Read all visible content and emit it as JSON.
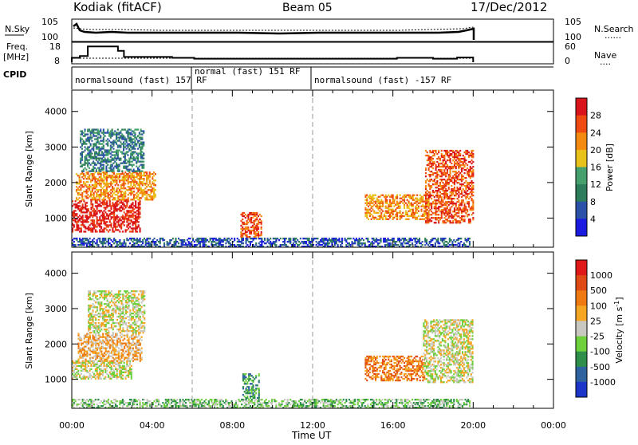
{
  "header": {
    "station": "Kodiak (fitACF)",
    "beam": "Beam 05",
    "date": "17/Dec/2012"
  },
  "top_panels": {
    "nsky": {
      "label": "N.Sky",
      "left_ticks": [
        "10^5",
        "10^0"
      ],
      "right_ticks": [
        "10^5",
        "10^0"
      ],
      "right_label": "N.Search",
      "right_marker": "......"
    },
    "freq": {
      "label_line1": "Freq.",
      "label_line2": "[MHz]",
      "left_ticks": [
        "18",
        "8"
      ],
      "right_ticks": [
        "60",
        "0"
      ],
      "right_label": "Nave",
      "right_marker": "...."
    },
    "cpid": {
      "label": "CPID",
      "segments": [
        {
          "text": "normalsound (fast) 157 RF",
          "start_hr": 0.0
        },
        {
          "text": "normal (fast) 151 RF",
          "start_hr": 6.0
        },
        {
          "text": "normalsound (fast) -157 RF",
          "start_hr": 12.0
        }
      ]
    },
    "freq_steps": [
      {
        "t0": 0.0,
        "t1": 0.4,
        "v": 10.5
      },
      {
        "t0": 0.4,
        "t1": 0.8,
        "v": 11.5
      },
      {
        "t0": 0.8,
        "t1": 2.3,
        "v": 17.0
      },
      {
        "t0": 2.3,
        "t1": 2.6,
        "v": 14.5
      },
      {
        "t0": 2.6,
        "t1": 5.0,
        "v": 11.0
      },
      {
        "t0": 5.0,
        "t1": 6.1,
        "v": 10.5
      },
      {
        "t0": 6.1,
        "t1": 12.0,
        "v": 10.0
      },
      {
        "t0": 12.0,
        "t1": 16.2,
        "v": 10.0
      },
      {
        "t0": 16.2,
        "t1": 18.0,
        "v": 10.5
      },
      {
        "t0": 18.0,
        "t1": 19.2,
        "v": 10.0
      },
      {
        "t0": 19.2,
        "t1": 20.0,
        "v": 10.7
      }
    ]
  },
  "chart_data": [
    {
      "type": "heatmap",
      "panel": "power",
      "ylabel": "Slant Range [km]",
      "xlabel": "Time UT",
      "x_ticks": [
        "00:00",
        "04:00",
        "08:00",
        "12:00",
        "16:00",
        "20:00",
        "00:00"
      ],
      "x_range_hr": [
        0,
        24
      ],
      "ylim": [
        180,
        4600
      ],
      "y_ticks": [
        "1000",
        "2000",
        "3000",
        "4000"
      ],
      "colorbar": {
        "label": "Power [dB]",
        "ticks": [
          "28",
          "24",
          "20",
          "16",
          "12",
          "8",
          "4"
        ],
        "colors": [
          "#1a1ae0",
          "#2b52a8",
          "#2e7d5a",
          "#46a06e",
          "#e8c21a",
          "#f58a10",
          "#ee4a12",
          "#d9141a"
        ]
      },
      "regions": [
        {
          "t0": 0.0,
          "t1": 3.4,
          "r0": 600,
          "r1": 1500,
          "level": 7
        },
        {
          "t0": 0.2,
          "t1": 4.2,
          "r0": 1500,
          "r1": 2300,
          "level": 5
        },
        {
          "t0": 0.4,
          "t1": 3.6,
          "r0": 2300,
          "r1": 3500,
          "level": 2
        },
        {
          "t0": 8.4,
          "t1": 9.4,
          "r0": 450,
          "r1": 1150,
          "level": 6
        },
        {
          "t0": 14.6,
          "t1": 17.8,
          "r0": 950,
          "r1": 1650,
          "level": 5
        },
        {
          "t0": 17.6,
          "t1": 20.0,
          "r0": 850,
          "r1": 2900,
          "level": 6
        },
        {
          "t0": 0.0,
          "t1": 19.8,
          "r0": 180,
          "r1": 420,
          "level": 1
        }
      ],
      "dashed_markers_hr": [
        6,
        12
      ]
    },
    {
      "type": "heatmap",
      "panel": "velocity",
      "ylabel": "Slant Range [km]",
      "xlabel": "Time UT",
      "x_ticks": [
        "00:00",
        "04:00",
        "08:00",
        "12:00",
        "16:00",
        "20:00",
        "00:00"
      ],
      "x_range_hr": [
        0,
        24
      ],
      "ylim": [
        180,
        4600
      ],
      "y_ticks": [
        "1000",
        "2000",
        "3000",
        "4000"
      ],
      "colorbar": {
        "label": "Velocity [m s^-1]",
        "ticks": [
          "1000",
          "500",
          "100",
          "25",
          "-25",
          "-100",
          "-500",
          "-1000"
        ],
        "colors": [
          "#1b36c8",
          "#2e63a0",
          "#2e8f4a",
          "#6ed03c",
          "#c8c8c0",
          "#f5a623",
          "#ef7a12",
          "#e04a14",
          "#e01818"
        ]
      },
      "regions": [
        {
          "t0": 0.0,
          "t1": 3.0,
          "r0": 1000,
          "r1": 1500,
          "level": 4
        },
        {
          "t0": 0.3,
          "t1": 3.5,
          "r0": 1500,
          "r1": 2300,
          "level": 5
        },
        {
          "t0": 0.8,
          "t1": 3.6,
          "r0": 2300,
          "r1": 3500,
          "level": 4
        },
        {
          "t0": 8.5,
          "t1": 9.3,
          "r0": 450,
          "r1": 1150,
          "level": 2
        },
        {
          "t0": 14.6,
          "t1": 17.6,
          "r0": 950,
          "r1": 1650,
          "level": 6
        },
        {
          "t0": 17.5,
          "t1": 20.0,
          "r0": 900,
          "r1": 2700,
          "level": 4
        },
        {
          "t0": 0.0,
          "t1": 19.8,
          "r0": 180,
          "r1": 420,
          "level": 3
        }
      ],
      "dashed_markers_hr": [
        6,
        12
      ]
    }
  ]
}
